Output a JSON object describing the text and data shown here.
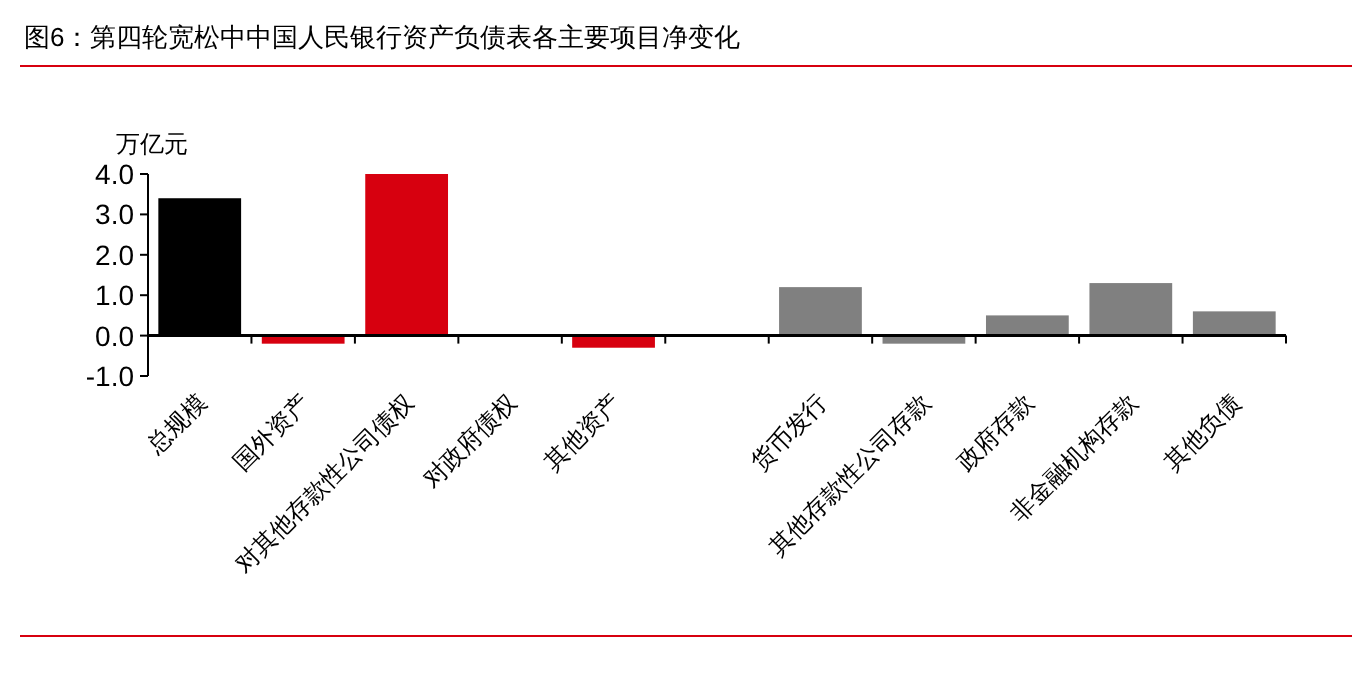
{
  "chart_data": {
    "type": "bar",
    "title": "图6：第四轮宽松中中国人民银行资产负债表各主要项目净变化",
    "ylabel": "万亿元",
    "categories": [
      "总规模",
      "国外资产",
      "对其他存款性公司债权",
      "对政府债权",
      "其他资产",
      null,
      "货币发行",
      "其他存款性公司存款",
      "政府存款",
      "非金融机构存款",
      "其他负债"
    ],
    "values": [
      3.4,
      -0.2,
      4.0,
      0,
      -0.3,
      null,
      1.2,
      -0.2,
      0.5,
      1.3,
      0.6
    ],
    "colors": [
      "#000000",
      "#d7000f",
      "#d7000f",
      "#d7000f",
      "#d7000f",
      null,
      "#808080",
      "#808080",
      "#808080",
      "#808080",
      "#808080"
    ],
    "ylim": [
      -1,
      4
    ],
    "yticks": [
      {
        "value": -1,
        "label": "-1.0"
      },
      {
        "value": 0,
        "label": "0.0"
      },
      {
        "value": 1,
        "label": "1.0"
      },
      {
        "value": 2,
        "label": "2.0"
      },
      {
        "value": 3,
        "label": "3.0"
      },
      {
        "value": 4,
        "label": "4.0"
      }
    ],
    "grid": false
  }
}
